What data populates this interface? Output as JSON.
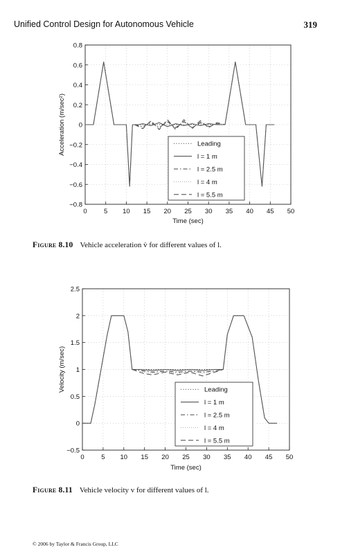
{
  "header": {
    "title": "Unified Control Design for Autonomous Vehicle",
    "page_number": "319"
  },
  "figures": [
    {
      "label": "Figure 8.10",
      "caption": "Vehicle acceleration v̇ for different values of l.",
      "chart_data": {
        "type": "line",
        "xlabel": "Time (sec)",
        "ylabel": "Acceleration (m/sec²)",
        "xlim": [
          0,
          50
        ],
        "ylim": [
          -0.8,
          0.8
        ],
        "xticks": [
          0,
          5,
          10,
          15,
          20,
          25,
          30,
          35,
          40,
          45,
          50
        ],
        "yticks": [
          -0.8,
          -0.6,
          -0.4,
          -0.2,
          0,
          0.2,
          0.4,
          0.6,
          0.8
        ],
        "ytick_labels": [
          "−0.8",
          "−0.6",
          "−0.4",
          "−0.2",
          "0",
          "0.2",
          "0.4",
          "0.6",
          "0.8"
        ],
        "grid": true,
        "legend_position": "bottom-right",
        "series": [
          {
            "name": "Leading",
            "style": "dotted",
            "x": [
              0,
              2,
              4.5,
              7,
              10,
              10.8,
              11.5,
              13,
              34,
              36.5,
              39,
              41.5,
              43,
              44,
              46
            ],
            "y": [
              0,
              0,
              0.63,
              0,
              0,
              -0.62,
              0,
              0,
              0,
              0.63,
              0,
              0,
              -0.62,
              0,
              0
            ]
          },
          {
            "name": "l = 1 m",
            "style": "solid",
            "x": [
              0,
              2,
              4.5,
              7,
              10,
              10.8,
              11.5,
              13,
              14,
              16,
              18,
              20,
              22,
              24,
              26,
              28,
              30,
              32,
              33,
              34,
              36.5,
              39,
              41.5,
              43,
              44,
              46
            ],
            "y": [
              0,
              0,
              0.63,
              0,
              0,
              -0.62,
              0,
              0,
              0.01,
              -0.01,
              0.02,
              -0.02,
              0.01,
              -0.01,
              0.01,
              -0.01,
              0.01,
              0.0,
              0.0,
              0,
              0.63,
              0,
              0,
              -0.62,
              0,
              0
            ]
          },
          {
            "name": "l = 2.5 m",
            "style": "dashdot",
            "x": [
              12,
              14,
              16,
              18,
              20,
              22,
              24,
              26,
              28,
              30,
              32,
              34
            ],
            "y": [
              0,
              -0.02,
              0.02,
              -0.03,
              0.03,
              -0.03,
              0.03,
              -0.03,
              0.02,
              -0.02,
              0.01,
              0
            ]
          },
          {
            "name": "l = 4 m",
            "style": "dotted-light",
            "x": [
              12,
              14,
              16,
              18,
              20,
              22,
              24,
              26,
              28,
              30,
              32,
              34
            ],
            "y": [
              0,
              -0.03,
              0.03,
              -0.04,
              0.04,
              -0.04,
              0.04,
              -0.03,
              0.03,
              -0.02,
              0.01,
              0
            ]
          },
          {
            "name": "l = 5.5 m",
            "style": "dashed",
            "x": [
              12,
              14,
              16,
              18,
              20,
              22,
              24,
              26,
              28,
              30,
              32,
              34
            ],
            "y": [
              0,
              -0.04,
              0.04,
              -0.05,
              0.05,
              -0.05,
              0.05,
              -0.04,
              0.04,
              -0.03,
              0.02,
              0
            ]
          }
        ]
      }
    },
    {
      "label": "Figure 8.11",
      "caption": "Vehicle velocity v for different values of l.",
      "chart_data": {
        "type": "line",
        "xlabel": "Time (sec)",
        "ylabel": "Velocity (m/sec)",
        "xlim": [
          0,
          50
        ],
        "ylim": [
          -0.5,
          2.5
        ],
        "xticks": [
          0,
          5,
          10,
          15,
          20,
          25,
          30,
          35,
          40,
          45,
          50
        ],
        "yticks": [
          -0.5,
          0,
          0.5,
          1,
          1.5,
          2,
          2.5
        ],
        "ytick_labels": [
          "−0.5",
          "0",
          "0.5",
          "1",
          "1.5",
          "2",
          "2.5"
        ],
        "grid": true,
        "legend_position": "bottom-right",
        "series": [
          {
            "name": "Leading",
            "style": "dotted",
            "x": [
              0,
              2,
              3,
              4.5,
              6,
              7,
              10,
              11,
              12,
              34,
              35,
              36.5,
              38,
              39,
              41,
              42.5,
              44,
              45,
              47
            ],
            "y": [
              0,
              0,
              0.35,
              1.0,
              1.65,
              2.0,
              2.0,
              1.7,
              1.0,
              1.0,
              1.65,
              2.0,
              2.0,
              2.0,
              1.6,
              0.8,
              0.1,
              0,
              0
            ]
          },
          {
            "name": "l = 1 m",
            "style": "solid",
            "x": [
              0,
              2,
              3,
              4.5,
              6,
              7,
              10,
              11,
              12,
              14,
              17,
              20,
              23,
              26,
              29,
              32,
              34,
              35,
              36.5,
              38,
              39,
              41,
              42.5,
              44,
              45,
              47
            ],
            "y": [
              0,
              0,
              0.35,
              1.0,
              1.65,
              2.0,
              2.0,
              1.7,
              1.0,
              1.0,
              0.98,
              1.0,
              0.98,
              1.0,
              0.98,
              1.0,
              1.0,
              1.65,
              2.0,
              2.0,
              2.0,
              1.6,
              0.8,
              0.1,
              0,
              0
            ]
          },
          {
            "name": "l = 2.5 m",
            "style": "dashdot",
            "x": [
              12,
              15,
              17,
              20,
              23,
              26,
              29,
              32,
              34
            ],
            "y": [
              1.0,
              0.97,
              0.95,
              0.97,
              0.95,
              0.97,
              0.95,
              0.97,
              1.0
            ]
          },
          {
            "name": "l = 4 m",
            "style": "dotted-light",
            "x": [
              12,
              15,
              17,
              20,
              23,
              26,
              29,
              32,
              34
            ],
            "y": [
              1.0,
              0.95,
              0.93,
              0.96,
              0.93,
              0.96,
              0.93,
              0.96,
              1.0
            ]
          },
          {
            "name": "l = 5.5 m",
            "style": "dashed",
            "x": [
              12,
              15,
              17,
              20,
              23,
              26,
              29,
              32,
              34
            ],
            "y": [
              1.0,
              0.92,
              0.9,
              0.95,
              0.9,
              0.95,
              0.88,
              0.95,
              1.0
            ]
          }
        ]
      }
    }
  ],
  "footer": "© 2006 by Taylor & Francis Group, LLC"
}
